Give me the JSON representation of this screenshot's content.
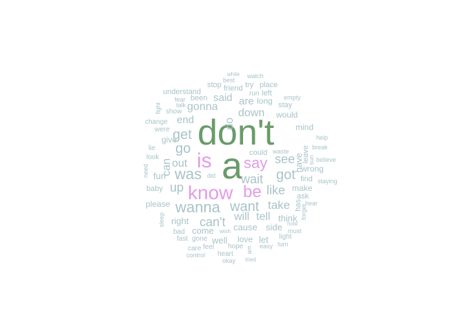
{
  "colors": {
    "background": "#ffffff",
    "dark": "#6a9b6a",
    "mid": "#e39be8",
    "light": "#a9c3c8"
  },
  "words": [
    {
      "text": "don't",
      "tier": "dark"
    },
    {
      "text": "a",
      "tier": "dark"
    },
    {
      "text": "is",
      "tier": "mid"
    },
    {
      "text": "say",
      "tier": "mid"
    },
    {
      "text": "know",
      "tier": "mid"
    },
    {
      "text": "be",
      "tier": "mid"
    },
    {
      "text": "was",
      "tier": "light"
    },
    {
      "text": "get",
      "tier": "light"
    },
    {
      "text": "go",
      "tier": "light"
    },
    {
      "text": "wanna",
      "tier": "light"
    },
    {
      "text": "want",
      "tier": "light"
    },
    {
      "text": "got",
      "tier": "light"
    },
    {
      "text": "see",
      "tier": "light"
    },
    {
      "text": "wait",
      "tier": "light"
    },
    {
      "text": "like",
      "tier": "light"
    },
    {
      "text": "up",
      "tier": "light"
    },
    {
      "text": "can't",
      "tier": "light"
    },
    {
      "text": "will",
      "tier": "light"
    },
    {
      "text": "tell",
      "tier": "light"
    },
    {
      "text": "take",
      "tier": "light"
    },
    {
      "text": "out",
      "tier": "light"
    },
    {
      "text": "can",
      "tier": "light"
    },
    {
      "text": "gonna",
      "tier": "light"
    },
    {
      "text": "down",
      "tier": "light"
    },
    {
      "text": "do",
      "tier": "light"
    },
    {
      "text": "said",
      "tier": "light"
    },
    {
      "text": "are",
      "tier": "light"
    },
    {
      "text": "end",
      "tier": "light"
    },
    {
      "text": "give",
      "tier": "light"
    },
    {
      "text": "fun",
      "tier": "light"
    },
    {
      "text": "right",
      "tier": "light"
    },
    {
      "text": "come",
      "tier": "light"
    },
    {
      "text": "well",
      "tier": "light"
    },
    {
      "text": "love",
      "tier": "light"
    },
    {
      "text": "cause",
      "tier": "light"
    },
    {
      "text": "side",
      "tier": "light"
    },
    {
      "text": "think",
      "tier": "light"
    },
    {
      "text": "let",
      "tier": "light"
    },
    {
      "text": "have",
      "tier": "light"
    },
    {
      "text": "long",
      "tier": "light"
    },
    {
      "text": "make",
      "tier": "light"
    },
    {
      "text": "wrong",
      "tier": "light"
    },
    {
      "text": "find",
      "tier": "light"
    },
    {
      "text": "mind",
      "tier": "light"
    },
    {
      "text": "leave",
      "tier": "light"
    },
    {
      "text": "would",
      "tier": "light"
    },
    {
      "text": "stay",
      "tier": "light"
    },
    {
      "text": "please",
      "tier": "light"
    },
    {
      "text": "baby",
      "tier": "light"
    },
    {
      "text": "stop",
      "tier": "light"
    },
    {
      "text": "friend",
      "tier": "light"
    },
    {
      "text": "try",
      "tier": "light"
    },
    {
      "text": "place",
      "tier": "light"
    },
    {
      "text": "left",
      "tier": "light"
    },
    {
      "text": "run",
      "tier": "light"
    },
    {
      "text": "been",
      "tier": "light"
    },
    {
      "text": "understand",
      "tier": "light"
    },
    {
      "text": "could",
      "tier": "light"
    },
    {
      "text": "ask",
      "tier": "light"
    },
    {
      "text": "has",
      "tier": "light"
    },
    {
      "text": "watch",
      "tier": "light"
    },
    {
      "text": "while",
      "tier": "light"
    },
    {
      "text": "best",
      "tier": "light"
    },
    {
      "text": "empty",
      "tier": "light"
    },
    {
      "text": "fear",
      "tier": "light"
    },
    {
      "text": "talk",
      "tier": "light"
    },
    {
      "text": "show",
      "tier": "light"
    },
    {
      "text": "fight",
      "tier": "light"
    },
    {
      "text": "change",
      "tier": "light"
    },
    {
      "text": "were",
      "tier": "light"
    },
    {
      "text": "lie",
      "tier": "light"
    },
    {
      "text": "look",
      "tier": "light"
    },
    {
      "text": "need",
      "tier": "light"
    },
    {
      "text": "did",
      "tier": "light"
    },
    {
      "text": "waste",
      "tier": "light"
    },
    {
      "text": "sun",
      "tier": "light"
    },
    {
      "text": "help",
      "tier": "light"
    },
    {
      "text": "break",
      "tier": "light"
    },
    {
      "text": "believe",
      "tier": "light"
    },
    {
      "text": "staying",
      "tier": "light"
    },
    {
      "text": "hear",
      "tier": "light"
    },
    {
      "text": "forget",
      "tier": "light"
    },
    {
      "text": "hold",
      "tier": "light"
    },
    {
      "text": "must",
      "tier": "light"
    },
    {
      "text": "light",
      "tier": "light"
    },
    {
      "text": "turn",
      "tier": "light"
    },
    {
      "text": "easy",
      "tier": "light"
    },
    {
      "text": "am",
      "tier": "light"
    },
    {
      "text": "tried",
      "tier": "light"
    },
    {
      "text": "hope",
      "tier": "light"
    },
    {
      "text": "heart",
      "tier": "light"
    },
    {
      "text": "okay",
      "tier": "light"
    },
    {
      "text": "feel",
      "tier": "light"
    },
    {
      "text": "care",
      "tier": "light"
    },
    {
      "text": "control",
      "tier": "light"
    },
    {
      "text": "gone",
      "tier": "light"
    },
    {
      "text": "fast",
      "tier": "light"
    },
    {
      "text": "bad",
      "tier": "light"
    },
    {
      "text": "wish",
      "tier": "light"
    },
    {
      "text": "sleep",
      "tier": "light"
    }
  ]
}
